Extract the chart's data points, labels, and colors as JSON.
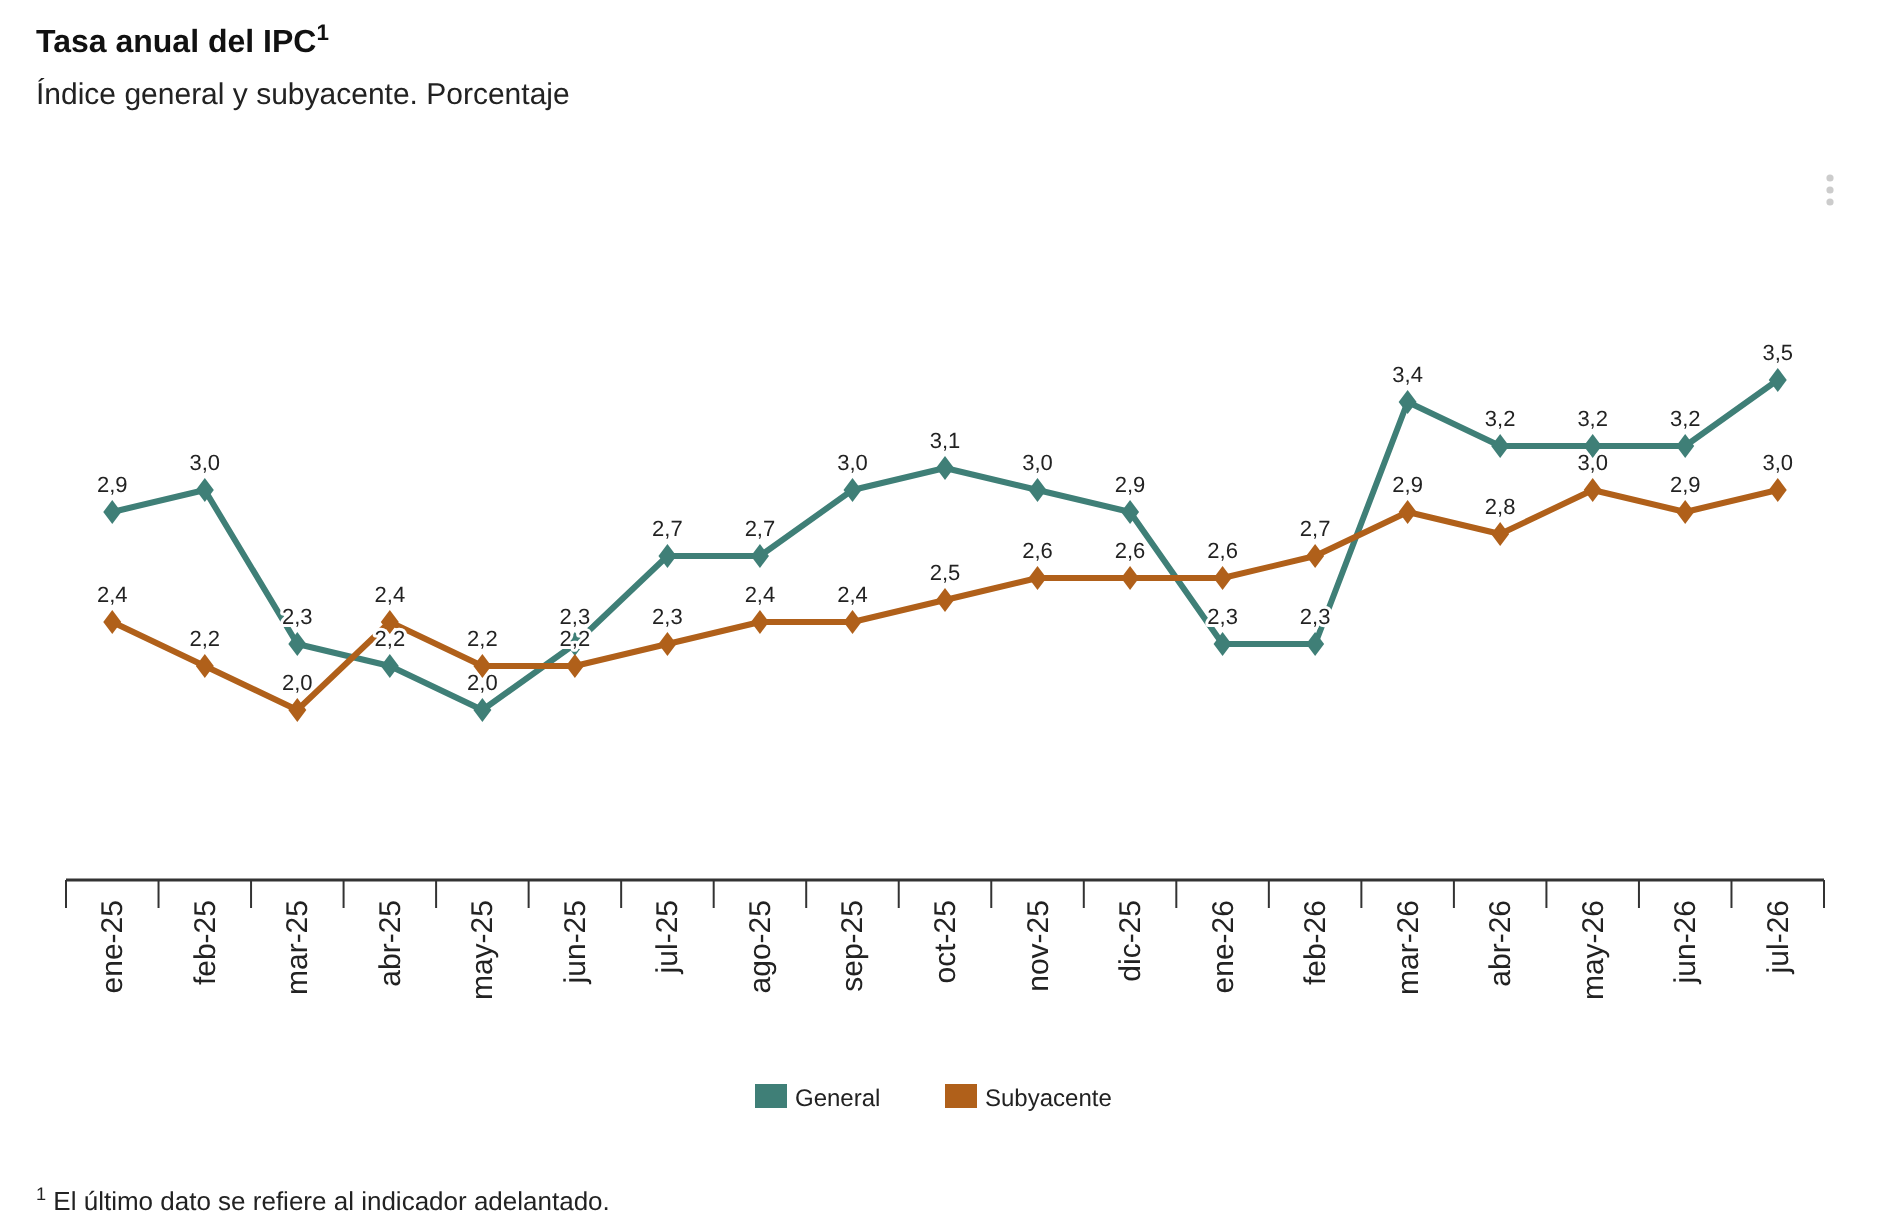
{
  "chart_data": {
    "type": "line",
    "title": "Tasa anual del IPC$^{1}$",
    "subtitle": "Índice general y subyacente. Porcentaje",
    "categories": [
      "ene-25",
      "feb-25",
      "mar-25",
      "abr-25",
      "may-25",
      "jun-25",
      "jul-25",
      "ago-25",
      "sep-25",
      "oct-25",
      "nov-25",
      "dic-25",
      "ene-26",
      "feb-26",
      "mar-26",
      "abr-26",
      "may-26",
      "jun-26",
      "jul-26"
    ],
    "series": [
      {
        "name": "General",
        "color": "#3f7f77",
        "values": [
          2.9,
          3.0,
          2.3,
          2.2,
          2.0,
          2.3,
          2.7,
          2.7,
          3.0,
          3.1,
          3.0,
          2.9,
          2.3,
          2.3,
          3.4,
          3.2,
          3.2,
          3.2,
          3.5
        ],
        "value_labels": [
          "2,9",
          "3,0",
          "2,3",
          "2,2",
          "2,0",
          "2,3",
          "2,7",
          "2,7",
          "3,0",
          "3,1",
          "3,0",
          "2,9",
          "2,3",
          "2,3",
          "3,4",
          "3,2",
          "3,2",
          "3,2",
          "3,5"
        ]
      },
      {
        "name": "Subyacente",
        "color": "#b0601a",
        "values": [
          2.4,
          2.2,
          2.0,
          2.4,
          2.2,
          2.2,
          2.3,
          2.4,
          2.4,
          2.5,
          2.6,
          2.6,
          2.6,
          2.7,
          2.9,
          2.8,
          3.0,
          2.9,
          3.0
        ],
        "value_labels": [
          "2,4",
          "2,2",
          "2,0",
          "2,4",
          "2,2",
          "2,2",
          "2,3",
          "2,4",
          "2,4",
          "2,5",
          "2,6",
          "2,6",
          "2,6",
          "2,7",
          "2,9",
          "2,8",
          "3,0",
          "2,9",
          "3,0"
        ]
      }
    ],
    "marker": "diamond",
    "legend": "bottom",
    "annotations": [
      "$^{1}$ El último dato se refiere al indicador adelantado."
    ]
  }
}
